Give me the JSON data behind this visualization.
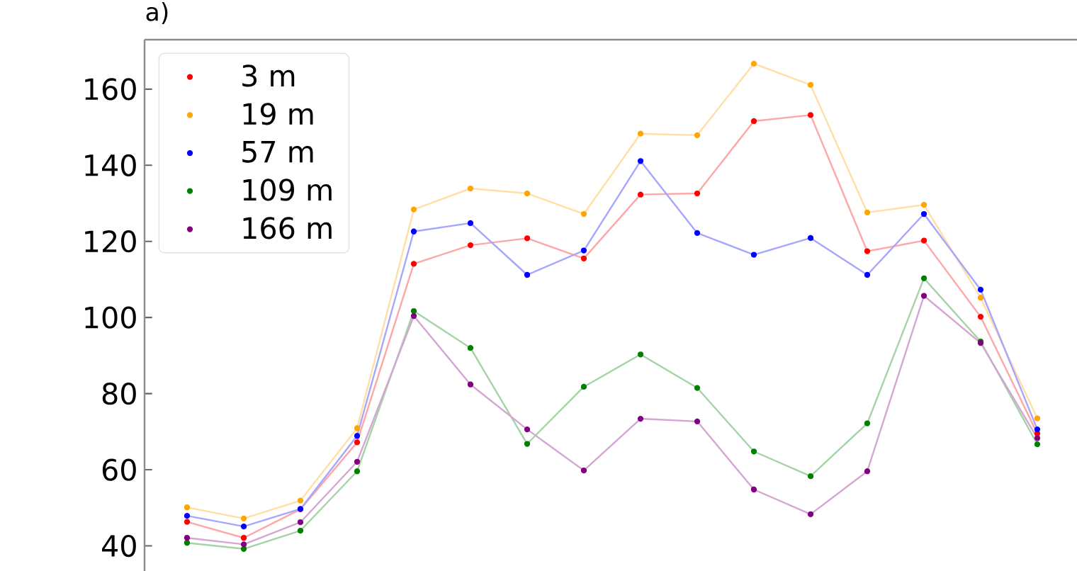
{
  "chart_data": {
    "type": "line",
    "title": "a)",
    "categories": [
      null,
      null,
      null,
      null,
      null,
      null,
      null,
      null,
      null,
      null,
      null,
      null,
      null,
      null,
      null,
      null
    ],
    "series": [
      {
        "name": "3 m",
        "color": "#ff0000",
        "values": [
          46.3,
          42.1,
          49.6,
          67.2,
          114.1,
          119.0,
          120.8,
          115.5,
          132.3,
          132.6,
          151.6,
          153.2,
          117.4,
          120.2,
          100.2,
          69.5
        ]
      },
      {
        "name": "19 m",
        "color": "#ffa500",
        "values": [
          50.1,
          47.2,
          51.9,
          70.9,
          128.4,
          133.9,
          132.6,
          127.2,
          148.3,
          147.9,
          166.7,
          161.1,
          127.6,
          129.6,
          105.2,
          73.5
        ]
      },
      {
        "name": "57 m",
        "color": "#0000ff",
        "values": [
          47.9,
          45.1,
          49.7,
          68.9,
          122.6,
          124.8,
          111.2,
          117.6,
          141.1,
          122.2,
          116.5,
          120.9,
          111.2,
          127.2,
          107.3,
          70.6
        ]
      },
      {
        "name": "109 m",
        "color": "#008000",
        "values": [
          40.8,
          39.2,
          44.0,
          59.6,
          101.7,
          92.0,
          66.8,
          81.8,
          90.3,
          81.5,
          64.8,
          58.3,
          72.2,
          110.3,
          93.7,
          66.7
        ]
      },
      {
        "name": "166 m",
        "color": "#800080",
        "values": [
          42.1,
          40.4,
          46.2,
          62.1,
          100.4,
          82.4,
          70.6,
          59.8,
          73.4,
          72.7,
          54.8,
          48.3,
          59.6,
          105.7,
          93.3,
          68.3
        ]
      }
    ],
    "ylim": [
      33.4,
      173
    ],
    "yticks": [
      40,
      60,
      80,
      100,
      120,
      140,
      160
    ],
    "grid": false,
    "legend": "top left",
    "marker": "circle",
    "line_style": "solid",
    "tick_labels": "y"
  }
}
